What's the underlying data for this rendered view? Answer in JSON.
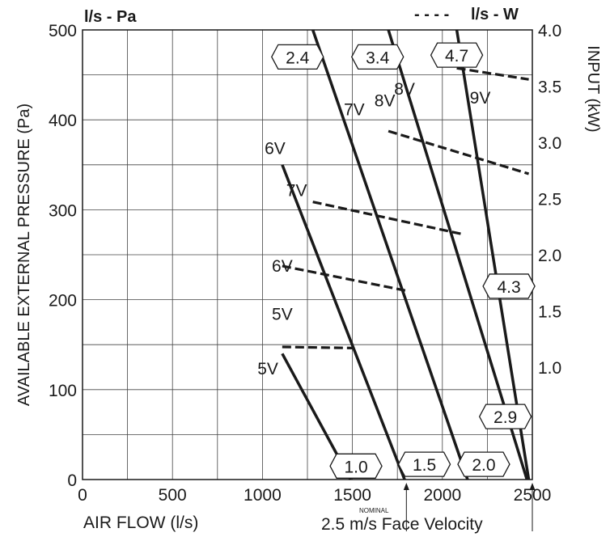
{
  "chart_data": {
    "type": "line",
    "legend": {
      "solid_label": "l/s - Pa",
      "dashed_label": "l/s - W",
      "dash_sample": "- - - -"
    },
    "xlabel": "AIR FLOW (l/s)",
    "ylabel_left": "AVAILABLE EXTERNAL PRESSURE (Pa)",
    "ylabel_right": "INPUT (kW)",
    "xlim": [
      0,
      2500
    ],
    "ylim_left": [
      0,
      500
    ],
    "ylim_right": [
      0,
      4.0
    ],
    "x_ticks": [
      "0",
      "500",
      "1000",
      "1500",
      "2000",
      "2500"
    ],
    "y_ticks_left": [
      "0",
      "100",
      "200",
      "300",
      "400",
      "500"
    ],
    "y_ticks_right": [
      "1.0",
      "1.5",
      "2.0",
      "2.5",
      "3.0",
      "3.5",
      "4.0"
    ],
    "grid": true,
    "nominal_label": "NOMINAL",
    "face_velocity_label": "2.5 m/s Face Velocity",
    "nominal_x": 1800,
    "face_velocity_x": 2500,
    "pressure_series": [
      {
        "name": "5V",
        "x": [
          1110,
          1490
        ],
        "y": [
          140,
          0
        ]
      },
      {
        "name": "6V",
        "x": [
          1110,
          1790
        ],
        "y": [
          350,
          0
        ]
      },
      {
        "name": "7V",
        "x": [
          1280,
          2140
        ],
        "y": [
          500,
          0
        ]
      },
      {
        "name": "8V",
        "x": [
          1700,
          2470
        ],
        "y": [
          500,
          0
        ]
      },
      {
        "name": "9V",
        "x": [
          2080,
          2480
        ],
        "y": [
          500,
          0
        ]
      }
    ],
    "input_series": [
      {
        "name": "5V",
        "x": [
          1110,
          1500
        ],
        "y": [
          1.18,
          1.17
        ]
      },
      {
        "name": "6V",
        "x": [
          1110,
          1800
        ],
        "y": [
          1.9,
          1.68
        ]
      },
      {
        "name": "7V",
        "x": [
          1280,
          2120
        ],
        "y": [
          2.47,
          2.18
        ]
      },
      {
        "name": "8V",
        "x": [
          1700,
          2480
        ],
        "y": [
          3.1,
          2.72
        ]
      },
      {
        "name": "9V",
        "x": [
          2080,
          2480
        ],
        "y": [
          3.66,
          3.56
        ]
      }
    ],
    "series_labels": [
      {
        "text": "5V",
        "x": 1030,
        "y": 117,
        "side": "pressure"
      },
      {
        "text": "6V",
        "x": 1070,
        "y": 362,
        "side": "pressure"
      },
      {
        "text": "7V",
        "x": 1510,
        "y": 405,
        "side": "pressure"
      },
      {
        "text": "8V",
        "x": 1790,
        "y": 428,
        "side": "pressure"
      },
      {
        "text": "9V",
        "x": 2210,
        "y": 418,
        "side": "pressure"
      },
      {
        "text": "5V",
        "x": 1110,
        "y": 1.42,
        "side": "input"
      },
      {
        "text": "6V",
        "x": 1110,
        "y": 1.85,
        "side": "input"
      },
      {
        "text": "7V",
        "x": 1190,
        "y": 2.52,
        "side": "input"
      },
      {
        "text": "8V",
        "x": 1680,
        "y": 3.32,
        "side": "input"
      }
    ],
    "kw_markers": [
      {
        "text": "2.4",
        "x": 1195,
        "y": 470
      },
      {
        "text": "3.4",
        "x": 1640,
        "y": 470
      },
      {
        "text": "4.7",
        "x": 2080,
        "y": 472
      },
      {
        "text": "4.3",
        "x": 2370,
        "y": 215
      },
      {
        "text": "2.9",
        "x": 2350,
        "y": 70
      },
      {
        "text": "1.0",
        "x": 1520,
        "y": 15
      },
      {
        "text": "1.5",
        "x": 1900,
        "y": 17
      },
      {
        "text": "2.0",
        "x": 2230,
        "y": 17
      }
    ]
  }
}
